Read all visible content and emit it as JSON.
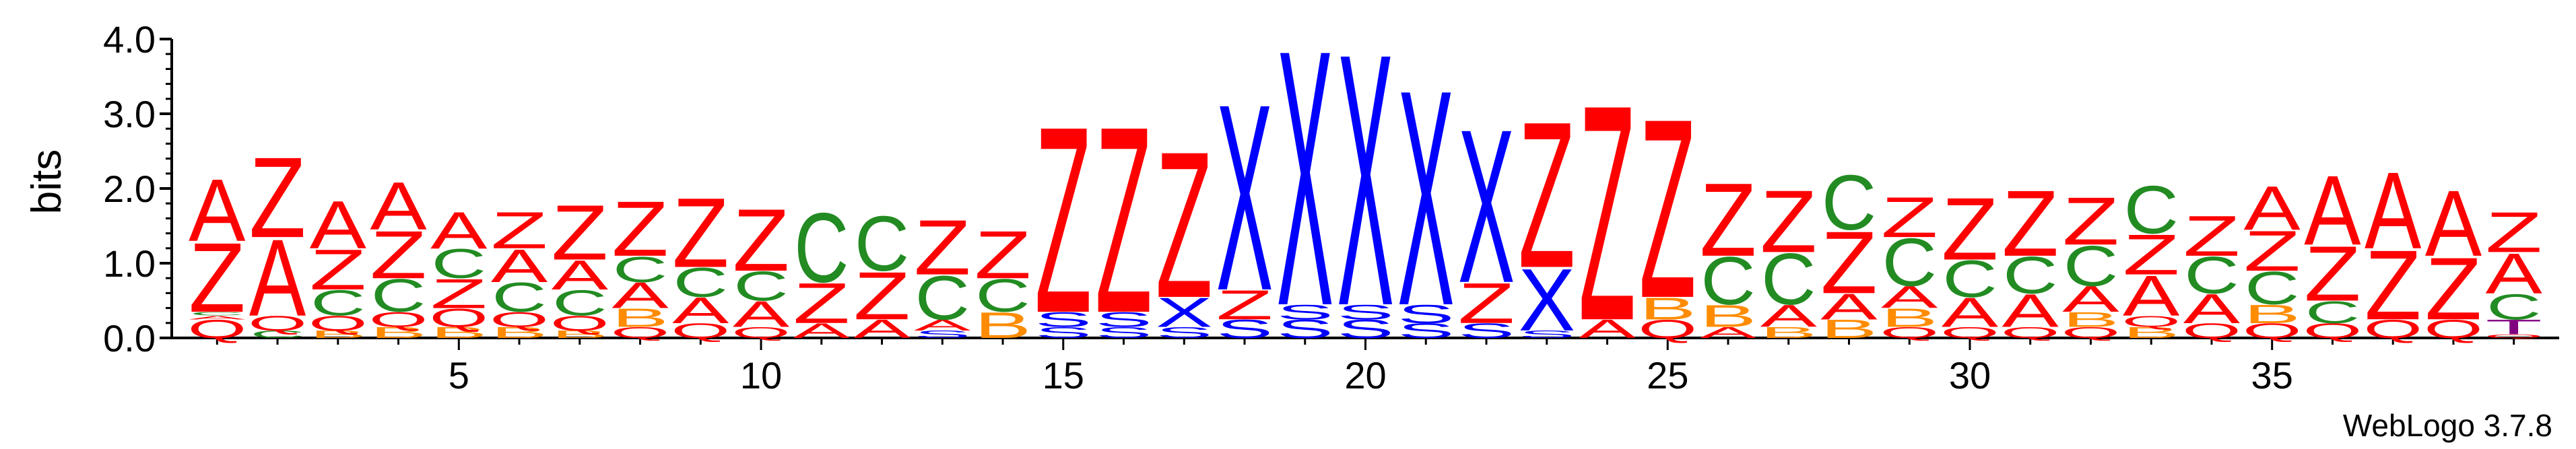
{
  "chart_data": {
    "type": "sequence-logo",
    "ylabel": "bits",
    "ylim": [
      0,
      4.0
    ],
    "y_ticks": [
      "0.0",
      "1.0",
      "2.0",
      "3.0",
      "4.0"
    ],
    "x_ticks": [
      "5",
      "10",
      "15",
      "20",
      "25",
      "30",
      "35"
    ],
    "x_tick_positions": [
      5,
      10,
      15,
      20,
      25,
      30,
      35
    ],
    "num_positions": 39,
    "footer": "WebLogo 3.7.8",
    "colors": {
      "A": "#ff0000",
      "Z": "#ff0000",
      "C": "#228b22",
      "X": "#0000ff",
      "S": "#0000ff",
      "B": "#ff8c00",
      "Q": "#ff0000",
      "T": "#800080"
    },
    "columns": [
      {
        "pos": 1,
        "stack": [
          [
            "Q",
            0.25
          ],
          [
            "A",
            0.05
          ],
          [
            "C",
            0.05
          ],
          [
            "Z",
            0.95
          ],
          [
            "A",
            0.85
          ]
        ]
      },
      {
        "pos": 2,
        "stack": [
          [
            "C",
            0.1
          ],
          [
            "Q",
            0.2
          ],
          [
            "A",
            1.05
          ],
          [
            "Z",
            1.1
          ]
        ]
      },
      {
        "pos": 3,
        "stack": [
          [
            "B",
            0.1
          ],
          [
            "Q",
            0.2
          ],
          [
            "C",
            0.35
          ],
          [
            "Z",
            0.55
          ],
          [
            "A",
            0.65
          ]
        ]
      },
      {
        "pos": 4,
        "stack": [
          [
            "B",
            0.15
          ],
          [
            "Q",
            0.2
          ],
          [
            "C",
            0.45
          ],
          [
            "Z",
            0.65
          ],
          [
            "A",
            0.65
          ]
        ]
      },
      {
        "pos": 5,
        "stack": [
          [
            "B",
            0.15
          ],
          [
            "Q",
            0.25
          ],
          [
            "Z",
            0.4
          ],
          [
            "C",
            0.4
          ],
          [
            "A",
            0.5
          ]
        ]
      },
      {
        "pos": 6,
        "stack": [
          [
            "B",
            0.15
          ],
          [
            "Q",
            0.2
          ],
          [
            "C",
            0.4
          ],
          [
            "A",
            0.45
          ],
          [
            "Z",
            0.5
          ]
        ]
      },
      {
        "pos": 7,
        "stack": [
          [
            "B",
            0.1
          ],
          [
            "Q",
            0.2
          ],
          [
            "C",
            0.35
          ],
          [
            "A",
            0.4
          ],
          [
            "Z",
            0.75
          ]
        ]
      },
      {
        "pos": 8,
        "stack": [
          [
            "Q",
            0.15
          ],
          [
            "B",
            0.25
          ],
          [
            "A",
            0.35
          ],
          [
            "C",
            0.35
          ],
          [
            "Z",
            0.75
          ]
        ]
      },
      {
        "pos": 9,
        "stack": [
          [
            "Q",
            0.2
          ],
          [
            "A",
            0.35
          ],
          [
            "C",
            0.4
          ],
          [
            "Z",
            0.95
          ]
        ]
      },
      {
        "pos": 10,
        "stack": [
          [
            "Q",
            0.15
          ],
          [
            "A",
            0.35
          ],
          [
            "C",
            0.4
          ],
          [
            "Z",
            0.85
          ]
        ]
      },
      {
        "pos": 11,
        "stack": [
          [
            "A",
            0.2
          ],
          [
            "Z",
            0.55
          ],
          [
            "C",
            0.95
          ]
        ]
      },
      {
        "pos": 12,
        "stack": [
          [
            "A",
            0.25
          ],
          [
            "Z",
            0.65
          ],
          [
            "C",
            0.75
          ]
        ]
      },
      {
        "pos": 13,
        "stack": [
          [
            "S",
            0.1
          ],
          [
            "A",
            0.15
          ],
          [
            "C",
            0.6
          ],
          [
            "Z",
            0.75
          ]
        ]
      },
      {
        "pos": 14,
        "stack": [
          [
            "B",
            0.35
          ],
          [
            "C",
            0.45
          ],
          [
            "Z",
            0.65
          ]
        ]
      },
      {
        "pos": 15,
        "stack": [
          [
            "S",
            0.15
          ],
          [
            "S",
            0.2
          ],
          [
            "Z",
            2.55
          ]
        ]
      },
      {
        "pos": 16,
        "stack": [
          [
            "S",
            0.15
          ],
          [
            "S",
            0.2
          ],
          [
            "Z",
            2.55
          ]
        ]
      },
      {
        "pos": 17,
        "stack": [
          [
            "S",
            0.15
          ],
          [
            "X",
            0.4
          ],
          [
            "Z",
            2.0
          ]
        ]
      },
      {
        "pos": 18,
        "stack": [
          [
            "S",
            0.25
          ],
          [
            "Z",
            0.4
          ],
          [
            "X",
            2.55
          ]
        ]
      },
      {
        "pos": 19,
        "stack": [
          [
            "S",
            0.25
          ],
          [
            "S",
            0.2
          ],
          [
            "X",
            3.5
          ]
        ]
      },
      {
        "pos": 20,
        "stack": [
          [
            "S",
            0.25
          ],
          [
            "S",
            0.2
          ],
          [
            "X",
            3.45
          ]
        ]
      },
      {
        "pos": 21,
        "stack": [
          [
            "S",
            0.2
          ],
          [
            "S",
            0.25
          ],
          [
            "X",
            2.95
          ]
        ]
      },
      {
        "pos": 22,
        "stack": [
          [
            "S",
            0.2
          ],
          [
            "Z",
            0.55
          ],
          [
            "X",
            2.1
          ]
        ]
      },
      {
        "pos": 23,
        "stack": [
          [
            "S",
            0.1
          ],
          [
            "X",
            0.85
          ],
          [
            "Z",
            2.0
          ]
        ]
      },
      {
        "pos": 24,
        "stack": [
          [
            "A",
            0.25
          ],
          [
            "Z",
            2.95
          ]
        ]
      },
      {
        "pos": 25,
        "stack": [
          [
            "Q",
            0.25
          ],
          [
            "B",
            0.3
          ],
          [
            "Z",
            2.45
          ]
        ]
      },
      {
        "pos": 26,
        "stack": [
          [
            "A",
            0.15
          ],
          [
            "B",
            0.3
          ],
          [
            "C",
            0.65
          ],
          [
            "Z",
            1.0
          ]
        ]
      },
      {
        "pos": 27,
        "stack": [
          [
            "B",
            0.15
          ],
          [
            "A",
            0.3
          ],
          [
            "C",
            0.7
          ],
          [
            "Z",
            0.85
          ]
        ]
      },
      {
        "pos": 28,
        "stack": [
          [
            "B",
            0.25
          ],
          [
            "A",
            0.35
          ],
          [
            "Z",
            0.85
          ],
          [
            "C",
            0.75
          ]
        ]
      },
      {
        "pos": 29,
        "stack": [
          [
            "Q",
            0.15
          ],
          [
            "B",
            0.25
          ],
          [
            "A",
            0.3
          ],
          [
            "C",
            0.65
          ],
          [
            "Z",
            0.55
          ]
        ]
      },
      {
        "pos": 30,
        "stack": [
          [
            "Q",
            0.15
          ],
          [
            "A",
            0.4
          ],
          [
            "C",
            0.5
          ],
          [
            "Z",
            0.85
          ]
        ]
      },
      {
        "pos": 31,
        "stack": [
          [
            "Q",
            0.15
          ],
          [
            "A",
            0.45
          ],
          [
            "C",
            0.5
          ],
          [
            "Z",
            0.9
          ]
        ]
      },
      {
        "pos": 32,
        "stack": [
          [
            "Q",
            0.15
          ],
          [
            "B",
            0.2
          ],
          [
            "A",
            0.35
          ],
          [
            "C",
            0.55
          ],
          [
            "Z",
            0.65
          ]
        ]
      },
      {
        "pos": 33,
        "stack": [
          [
            "B",
            0.15
          ],
          [
            "Q",
            0.15
          ],
          [
            "A",
            0.55
          ],
          [
            "Z",
            0.55
          ],
          [
            "C",
            0.65
          ]
        ]
      },
      {
        "pos": 34,
        "stack": [
          [
            "Q",
            0.2
          ],
          [
            "A",
            0.4
          ],
          [
            "C",
            0.5
          ],
          [
            "Z",
            0.55
          ]
        ]
      },
      {
        "pos": 35,
        "stack": [
          [
            "Q",
            0.2
          ],
          [
            "B",
            0.25
          ],
          [
            "C",
            0.45
          ],
          [
            "Z",
            0.55
          ],
          [
            "A",
            0.6
          ]
        ]
      },
      {
        "pos": 36,
        "stack": [
          [
            "Q",
            0.2
          ],
          [
            "C",
            0.3
          ],
          [
            "Z",
            0.75
          ],
          [
            "A",
            0.95
          ]
        ]
      },
      {
        "pos": 37,
        "stack": [
          [
            "Q",
            0.25
          ],
          [
            "Z",
            0.95
          ],
          [
            "A",
            1.05
          ]
        ]
      },
      {
        "pos": 38,
        "stack": [
          [
            "Q",
            0.25
          ],
          [
            "Z",
            0.85
          ],
          [
            "A",
            0.9
          ]
        ]
      },
      {
        "pos": 39,
        "stack": [
          [
            "Q",
            0.05
          ],
          [
            "T",
            0.2
          ],
          [
            "C",
            0.35
          ],
          [
            "A",
            0.55
          ],
          [
            "Z",
            0.55
          ]
        ]
      }
    ]
  }
}
